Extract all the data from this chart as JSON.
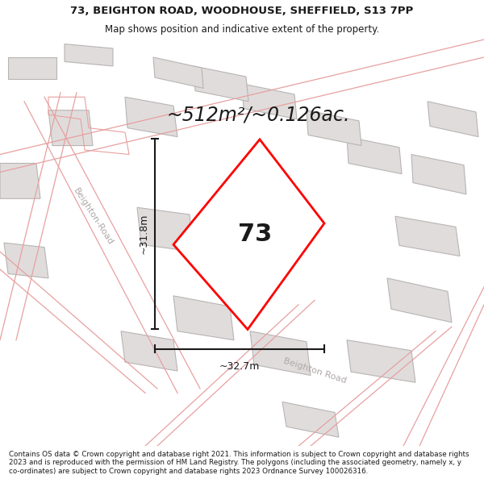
{
  "title_line1": "73, BEIGHTON ROAD, WOODHOUSE, SHEFFIELD, S13 7PP",
  "title_line2": "Map shows position and indicative extent of the property.",
  "area_text": "~512m²/~0.126ac.",
  "property_number": "73",
  "dim_height": "~31.8m",
  "dim_width": "~32.7m",
  "road_label_diag": "Beighton Road",
  "road_label_left": "Beighton-Road",
  "footer_text": "Contains OS data © Crown copyright and database right 2021. This information is subject to Crown copyright and database rights 2023 and is reproduced with the permission of HM Land Registry. The polygons (including the associated geometry, namely x, y co-ordinates) are subject to Crown copyright and database rights 2023 Ordnance Survey 100026316.",
  "bg_color": "#ffffff",
  "map_bg": "#ffffff",
  "building_color": "#e0dcdc",
  "building_edge": "#b8b4b4",
  "road_fill": "#ffffff",
  "road_edge": "#f0c0c0",
  "road_outline_color": "#e8a0a0",
  "property_outline": "#ff0000",
  "property_fill": "#ffffff",
  "dim_line_color": "#1a1a1a",
  "text_color": "#1a1a1a",
  "road_text_color": "#b0a8a8",
  "footer_color": "#1a1a1a",
  "title_fontsize": 9.5,
  "subtitle_fontsize": 8.5,
  "area_fontsize": 17,
  "number_fontsize": 22,
  "dim_fontsize": 9,
  "road_fontsize": 8,
  "footer_fontsize": 6.3
}
